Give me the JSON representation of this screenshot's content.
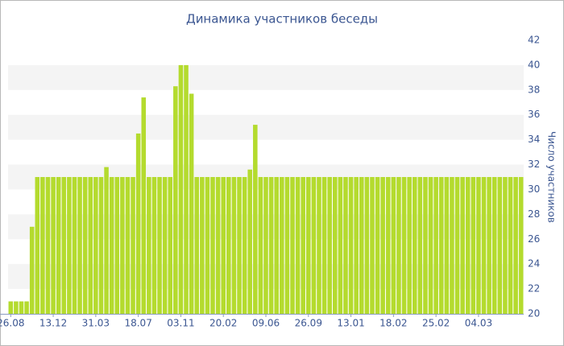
{
  "chart_data": {
    "type": "bar",
    "title": "Динамика участников беседы",
    "y_axis_label": "Число участников",
    "categories": [
      "26.08",
      null,
      null,
      null,
      null,
      null,
      null,
      null,
      "13.12",
      null,
      null,
      null,
      null,
      null,
      null,
      null,
      "31.03",
      null,
      null,
      null,
      null,
      null,
      null,
      null,
      "18.07",
      null,
      null,
      null,
      null,
      null,
      null,
      null,
      "03.11",
      null,
      null,
      null,
      null,
      null,
      null,
      null,
      "20.02",
      null,
      null,
      null,
      null,
      null,
      null,
      null,
      "09.06",
      null,
      null,
      null,
      null,
      null,
      null,
      null,
      "26.09",
      null,
      null,
      null,
      null,
      null,
      null,
      null,
      "13.01",
      null,
      null,
      null,
      null,
      null,
      null,
      null,
      "18.02",
      null,
      null,
      null,
      null,
      null,
      null,
      null,
      "25.02",
      null,
      null,
      null,
      null,
      null,
      null,
      null,
      "04.03",
      null,
      null,
      null,
      null,
      null,
      null,
      null,
      null
    ],
    "values": [
      21,
      21,
      21,
      21,
      27,
      31,
      31,
      31,
      31,
      31,
      31,
      31,
      31,
      31,
      31,
      31,
      31,
      31,
      31.8,
      31,
      31,
      31,
      31,
      31,
      34.5,
      37.4,
      31,
      31,
      31,
      31,
      31,
      38.3,
      40,
      40,
      37.7,
      31,
      31,
      31,
      31,
      31,
      31,
      31,
      31,
      31,
      31,
      31.6,
      35.2,
      31,
      31,
      31,
      31,
      31,
      31,
      31,
      31,
      31,
      31,
      31,
      31,
      31,
      31,
      31,
      31,
      31,
      31,
      31,
      31,
      31,
      31,
      31,
      31,
      31,
      31,
      31,
      31,
      31,
      31,
      31,
      31,
      31,
      31,
      31,
      31,
      31,
      31,
      31,
      31,
      31,
      31,
      31,
      31,
      31,
      31,
      31,
      31,
      31,
      31
    ],
    "color": "#b4db2e",
    "ylim": [
      20,
      42
    ],
    "yticks": [
      20,
      22,
      24,
      26,
      28,
      30,
      32,
      34,
      36,
      38,
      40,
      42
    ],
    "grid_bands": true
  }
}
